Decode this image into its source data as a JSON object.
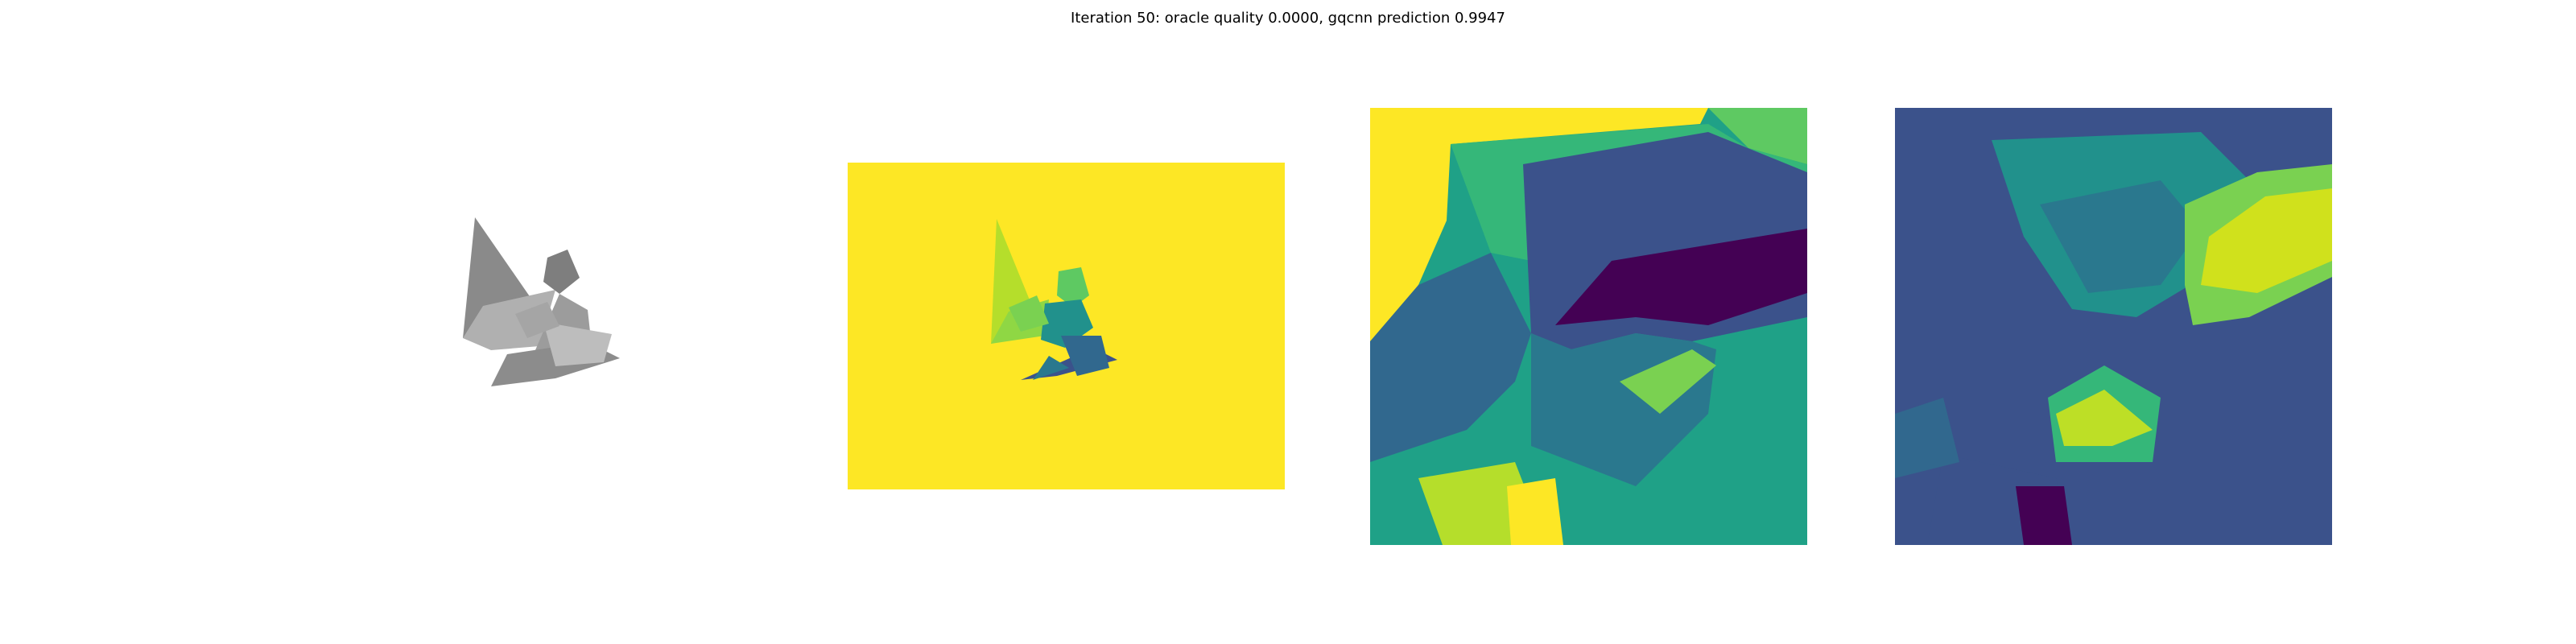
{
  "figure": {
    "title": "Iteration 50: oracle quality 0.0000, gqcnn prediction 0.9947"
  },
  "panels": [
    {
      "id": "rendered-object",
      "kind": "grayscale rendering"
    },
    {
      "id": "depth-image",
      "kind": "viridis depth map",
      "background": "#fde725"
    },
    {
      "id": "depth-crop",
      "kind": "viridis crop"
    },
    {
      "id": "depth-crop-2",
      "kind": "viridis crop"
    }
  ],
  "colors": {
    "viridis_dark": "#440154",
    "viridis_blue": "#3b528b",
    "viridis_teal": "#21918c",
    "viridis_green": "#5ec962",
    "viridis_yellow": "#fde725"
  }
}
